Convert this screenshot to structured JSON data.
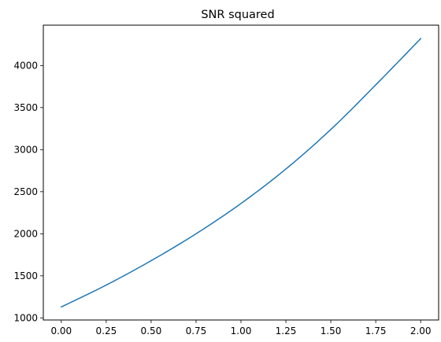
{
  "chart_data": {
    "type": "line",
    "title": "SNR squared",
    "xlabel": "",
    "ylabel": "",
    "xlim": [
      -0.1,
      2.1
    ],
    "ylim": [
      975,
      4480
    ],
    "xticks": [
      0.0,
      0.25,
      0.5,
      0.75,
      1.0,
      1.25,
      1.5,
      1.75,
      2.0
    ],
    "xtick_labels": [
      "0.00",
      "0.25",
      "0.50",
      "0.75",
      "1.00",
      "1.25",
      "1.50",
      "1.75",
      "2.00"
    ],
    "yticks": [
      1000,
      1500,
      2000,
      2500,
      3000,
      3500,
      4000
    ],
    "ytick_labels": [
      "1000",
      "1500",
      "2000",
      "2500",
      "3000",
      "3500",
      "4000"
    ],
    "grid": false,
    "series": [
      {
        "color": "#1f77b4",
        "x": [
          0.0,
          0.25,
          0.5,
          0.75,
          1.0,
          1.25,
          1.5,
          1.75,
          2.0
        ],
        "y": [
          1130,
          1390,
          1680,
          2000,
          2360,
          2770,
          3240,
          3770,
          4320
        ]
      }
    ]
  }
}
